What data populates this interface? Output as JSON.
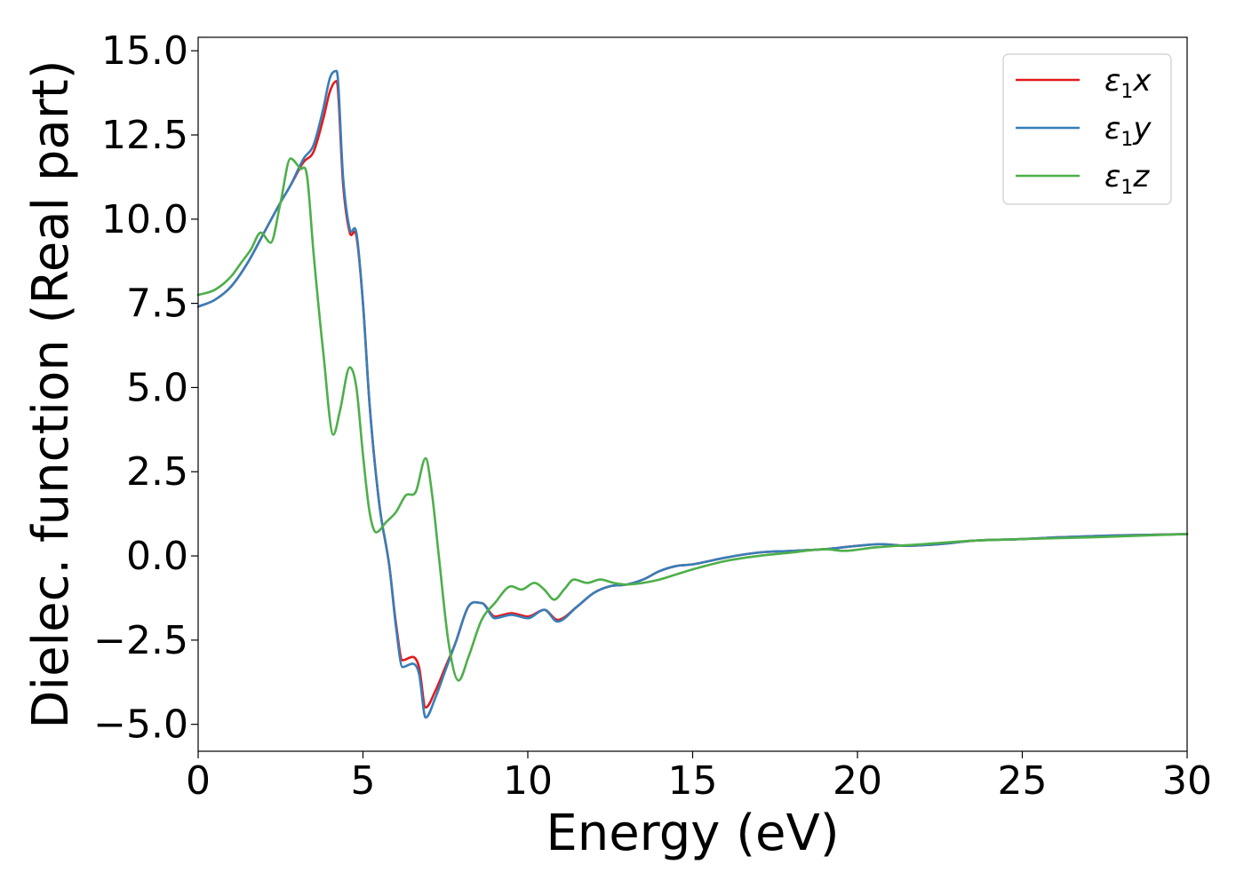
{
  "chart_data": {
    "type": "line",
    "xlabel": "Energy (eV)",
    "ylabel": "Dielec. function (Real part)",
    "xlim": [
      0,
      30
    ],
    "ylim": [
      -5.8,
      15.4
    ],
    "xticks": [
      0,
      5,
      10,
      15,
      20,
      25,
      30
    ],
    "xtick_labels": [
      "0",
      "5",
      "10",
      "15",
      "20",
      "25",
      "30"
    ],
    "yticks": [
      -5.0,
      -2.5,
      0.0,
      2.5,
      5.0,
      7.5,
      10.0,
      12.5,
      15.0
    ],
    "ytick_labels": [
      "−5.0",
      "−2.5",
      "0.0",
      "2.5",
      "5.0",
      "7.5",
      "10.0",
      "12.5",
      "15.0"
    ],
    "grid": false,
    "legend_position": "top-right",
    "series": [
      {
        "name": "ε",
        "name_sub": "1",
        "name_suffix": "x",
        "color": "#e41a1c",
        "x": [
          0,
          0.5,
          1,
          1.5,
          2,
          2.5,
          2.8,
          3.2,
          3.5,
          3.8,
          4.0,
          4.2,
          4.4,
          4.6,
          4.8,
          5.0,
          5.2,
          5.5,
          5.8,
          6.0,
          6.2,
          6.5,
          6.7,
          6.9,
          7.2,
          7.5,
          7.8,
          8.2,
          8.6,
          9.0,
          9.5,
          10.0,
          10.5,
          10.9,
          11.5,
          12.0,
          12.5,
          13.0,
          13.5,
          14.0,
          14.5,
          15.0,
          16.0,
          17.0,
          18.0,
          19.0,
          20.0,
          20.7,
          21.5,
          22.5,
          23.5,
          25.0,
          26.0,
          27.5,
          28.5,
          30.0
        ],
        "y": [
          7.4,
          7.6,
          8.0,
          8.7,
          9.6,
          10.5,
          11.0,
          11.7,
          12.0,
          13.0,
          13.8,
          14.1,
          11.0,
          9.6,
          9.5,
          7.5,
          4.5,
          1.5,
          -0.3,
          -2.0,
          -3.1,
          -3.0,
          -3.3,
          -4.5,
          -4.0,
          -3.3,
          -2.6,
          -1.5,
          -1.4,
          -1.8,
          -1.7,
          -1.8,
          -1.6,
          -1.9,
          -1.5,
          -1.1,
          -0.9,
          -0.85,
          -0.7,
          -0.45,
          -0.3,
          -0.25,
          -0.05,
          0.1,
          0.15,
          0.2,
          0.3,
          0.35,
          0.3,
          0.35,
          0.45,
          0.5,
          0.55,
          0.6,
          0.62,
          0.65
        ]
      },
      {
        "name": "ε",
        "name_sub": "1",
        "name_suffix": "y",
        "color": "#377eb8",
        "x": [
          0,
          0.5,
          1,
          1.5,
          2,
          2.5,
          2.8,
          3.2,
          3.5,
          3.8,
          4.0,
          4.2,
          4.4,
          4.6,
          4.8,
          5.0,
          5.2,
          5.5,
          5.8,
          6.0,
          6.2,
          6.5,
          6.7,
          6.9,
          7.2,
          7.5,
          7.8,
          8.2,
          8.6,
          9.0,
          9.5,
          10.0,
          10.5,
          10.9,
          11.5,
          12.0,
          12.5,
          13.0,
          13.5,
          14.0,
          14.5,
          15.0,
          16.0,
          17.0,
          18.0,
          19.0,
          20.0,
          20.7,
          21.5,
          22.5,
          23.5,
          25.0,
          26.0,
          27.5,
          28.5,
          30.0
        ],
        "y": [
          7.4,
          7.6,
          8.0,
          8.7,
          9.6,
          10.5,
          11.0,
          11.8,
          12.2,
          13.3,
          14.2,
          14.4,
          11.2,
          9.7,
          9.6,
          7.5,
          4.5,
          1.5,
          -0.3,
          -2.1,
          -3.3,
          -3.2,
          -3.5,
          -4.8,
          -4.2,
          -3.4,
          -2.6,
          -1.5,
          -1.4,
          -1.85,
          -1.75,
          -1.85,
          -1.6,
          -1.95,
          -1.5,
          -1.1,
          -0.9,
          -0.85,
          -0.7,
          -0.45,
          -0.3,
          -0.25,
          -0.05,
          0.1,
          0.15,
          0.2,
          0.3,
          0.35,
          0.3,
          0.35,
          0.45,
          0.5,
          0.55,
          0.6,
          0.62,
          0.65
        ]
      },
      {
        "name": "ε",
        "name_sub": "1",
        "name_suffix": "z",
        "color": "#4daf4a",
        "x": [
          0,
          0.5,
          1,
          1.3,
          1.6,
          1.9,
          2.2,
          2.5,
          2.8,
          3.1,
          3.3,
          3.5,
          3.8,
          4.1,
          4.3,
          4.6,
          4.8,
          5.0,
          5.2,
          5.4,
          5.7,
          6.0,
          6.3,
          6.6,
          6.9,
          7.1,
          7.3,
          7.6,
          7.9,
          8.2,
          8.6,
          9.0,
          9.5,
          9.8,
          10.2,
          10.5,
          10.8,
          11.1,
          11.4,
          11.8,
          12.2,
          12.6,
          13.0,
          13.5,
          14.0,
          14.5,
          15.0,
          16.0,
          17.0,
          18.0,
          19.0,
          19.6,
          20.5,
          22.0,
          23.5,
          25.0,
          27.0,
          28.5,
          30.0
        ],
        "y": [
          7.75,
          7.9,
          8.3,
          8.7,
          9.1,
          9.6,
          9.3,
          10.5,
          11.8,
          11.5,
          11.3,
          9.0,
          6.0,
          3.6,
          4.3,
          5.6,
          5.0,
          3.0,
          1.3,
          0.7,
          1.0,
          1.3,
          1.8,
          1.9,
          2.9,
          1.8,
          0.0,
          -2.6,
          -3.7,
          -3.0,
          -1.9,
          -1.4,
          -0.9,
          -1.0,
          -0.8,
          -1.0,
          -1.3,
          -1.0,
          -0.7,
          -0.8,
          -0.7,
          -0.8,
          -0.85,
          -0.8,
          -0.7,
          -0.55,
          -0.4,
          -0.15,
          0.0,
          0.1,
          0.2,
          0.15,
          0.25,
          0.35,
          0.45,
          0.5,
          0.55,
          0.6,
          0.65
        ]
      }
    ]
  }
}
